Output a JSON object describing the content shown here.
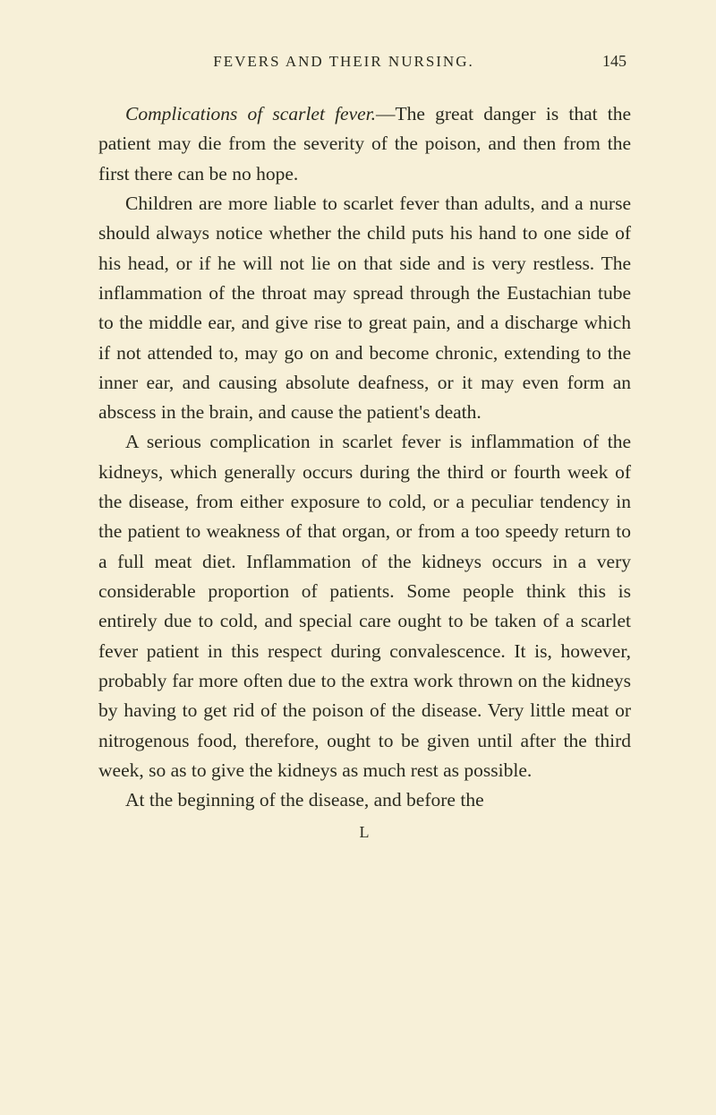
{
  "header": {
    "title": "FEVERS AND THEIR NURSING.",
    "page_number": "145"
  },
  "content": {
    "p1_italic": "Complications of scarlet fever.",
    "p1_rest": "—The great danger is that the patient may die from the severity of the poison, and then from the first there can be no hope.",
    "p2": "Children are more liable to scarlet fever than adults, and a nurse should always notice whether the child puts his hand to one side of his head, or if he will not lie on that side and is very restless. The inflammation of the throat may spread through the Eustachian tube to the middle ear, and give rise to great pain, and a discharge which if not attended to, may go on and become chronic, extending to the inner ear, and causing absolute deafness, or it may even form an abscess in the brain, and cause the patient's death.",
    "p3": "A serious complication in scarlet fever is inflammation of the kidneys, which generally occurs during the third or fourth week of the disease, from either exposure to cold, or a peculiar tendency in the patient to weakness of that organ, or from a too speedy return to a full meat diet. Inflammation of the kidneys occurs in a very considerable proportion of patients. Some people think this is entirely due to cold, and special care ought to be taken of a scarlet fever patient in this respect during convalescence. It is, however, probably far more often due to the extra work thrown on the kidneys by having to get rid of the poison of the disease. Very little meat or nitrogenous food, therefore, ought to be given until after the third week, so as to give the kidneys as much rest as possible.",
    "p4": "At the beginning of the disease, and before the"
  },
  "footer": {
    "letter": "L"
  },
  "colors": {
    "background": "#f7f0d8",
    "text": "#2a2a1f"
  }
}
